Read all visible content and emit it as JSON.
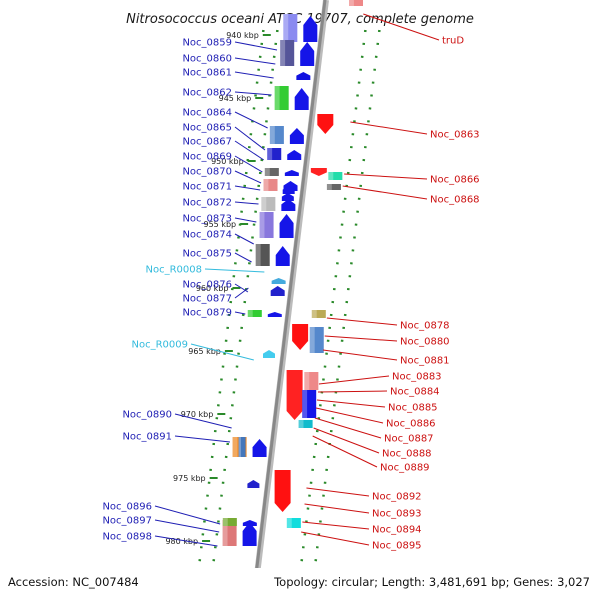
{
  "title": "Nitrosococcus oceani ATCC 19707, complete genome",
  "footer": {
    "accession": "Accession: NC_007484",
    "topology": "Topology: circular; Length: 3,481,691 bp; Genes: 3,027"
  },
  "colors": {
    "forward_label": "#1f1fb4",
    "reverse_label": "#cc1111",
    "rna_label": "#33bbdd",
    "backbone": "#888888",
    "ruler": "#2a8a2a"
  },
  "kbp_ticks": [
    "940 kbp",
    "945 kbp",
    "950 kbp",
    "955 kbp",
    "960 kbp",
    "965 kbp",
    "970 kbp",
    "975 kbp",
    "980 kbp"
  ],
  "forward_genes": [
    "Noc_0859",
    "Noc_0860",
    "Noc_0861",
    "Noc_0862",
    "Noc_0864",
    "Noc_0865",
    "Noc_0867",
    "Noc_0869",
    "Noc_0870",
    "Noc_0871",
    "Noc_0872",
    "Noc_0873",
    "Noc_0874",
    "Noc_0875",
    "Noc_0876",
    "Noc_0877",
    "Noc_0879",
    "Noc_0890",
    "Noc_0891",
    "Noc_0896",
    "Noc_0897",
    "Noc_0898"
  ],
  "rna_genes": [
    "Noc_R0008",
    "Noc_R0009"
  ],
  "reverse_genes": [
    "truD",
    "Noc_0863",
    "Noc_0866",
    "Noc_0868",
    "Noc_0878",
    "Noc_0880",
    "Noc_0881",
    "Noc_0883",
    "Noc_0884",
    "Noc_0885",
    "Noc_0886",
    "Noc_0887",
    "Noc_0888",
    "Noc_0889",
    "Noc_0892",
    "Noc_0893",
    "Noc_0894",
    "Noc_0895"
  ]
}
